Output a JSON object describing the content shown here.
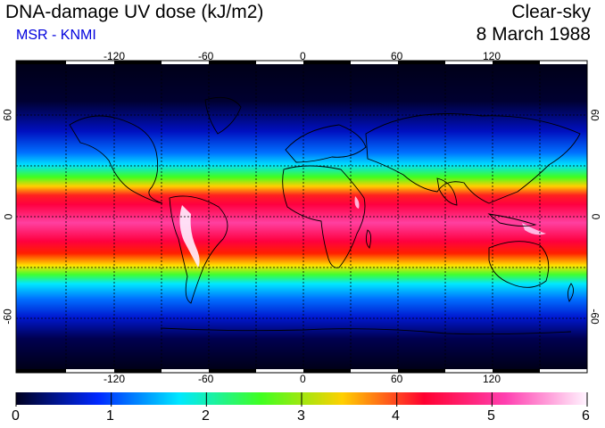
{
  "header": {
    "title": "DNA-damage UV dose (kJ/m2)",
    "source": "MSR - KNMI",
    "condition": "Clear-sky",
    "date": "8 March 1988"
  },
  "map": {
    "lon_ticks": [
      "-120",
      "-60",
      "0",
      "60",
      "120"
    ],
    "lat_ticks": [
      "60",
      "0",
      "-60"
    ]
  },
  "colorbar": {
    "labels": [
      "0",
      "1",
      "2",
      "3",
      "4",
      "5",
      "6"
    ],
    "colors": [
      "#000020",
      "#0028ff",
      "#00e8ff",
      "#40ff20",
      "#ffd000",
      "#ff0030",
      "#ff40b0",
      "#fff4ff"
    ]
  },
  "colors": {
    "subtitle": "#0000dd",
    "gridline": "#000000",
    "coast": "#000000"
  }
}
